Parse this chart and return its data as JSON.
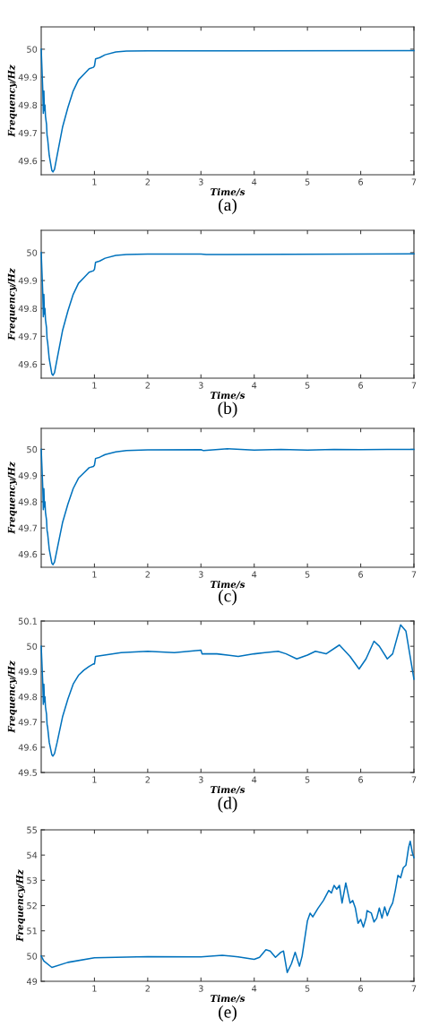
{
  "chart_data": [
    {
      "type": "line",
      "xlabel": "Time/s",
      "ylabel": "Frequency/Hz",
      "annotations": [
        "(a)"
      ],
      "xlim": [
        0,
        7
      ],
      "xticks": [
        1,
        2,
        3,
        4,
        5,
        6,
        7
      ],
      "ylim": [
        49.55,
        50.08
      ],
      "yticks": [
        49.6,
        49.7,
        49.8,
        49.9,
        50
      ],
      "grid": false,
      "legend": false,
      "series": [
        {
          "color": "#0072bd",
          "x": [
            0,
            0.01,
            0.03,
            0.04,
            0.05,
            0.06,
            0.07,
            0.08,
            0.1,
            0.11,
            0.12,
            0.15,
            0.2,
            0.22,
            0.25,
            0.3,
            0.4,
            0.5,
            0.6,
            0.7,
            0.8,
            0.9,
            0.98,
            1.0,
            1.02,
            1.1,
            1.2,
            1.4,
            1.6,
            2,
            3,
            7
          ],
          "values": [
            50.0,
            49.95,
            49.85,
            49.77,
            49.85,
            49.78,
            49.8,
            49.76,
            49.73,
            49.69,
            49.68,
            49.62,
            49.565,
            49.56,
            49.57,
            49.62,
            49.72,
            49.79,
            49.85,
            49.89,
            49.91,
            49.93,
            49.935,
            49.94,
            49.965,
            49.97,
            49.98,
            49.99,
            49.993,
            49.994,
            49.994,
            49.995
          ]
        }
      ]
    },
    {
      "type": "line",
      "xlabel": "Time/s",
      "ylabel": "Frequency/Hz",
      "annotations": [
        "(b)"
      ],
      "xlim": [
        0,
        7
      ],
      "xticks": [
        1,
        2,
        3,
        4,
        5,
        6,
        7
      ],
      "ylim": [
        49.55,
        50.08
      ],
      "yticks": [
        49.6,
        49.7,
        49.8,
        49.9,
        50
      ],
      "grid": false,
      "legend": false,
      "series": [
        {
          "color": "#0072bd",
          "x": [
            0,
            0.01,
            0.03,
            0.04,
            0.05,
            0.06,
            0.07,
            0.08,
            0.1,
            0.11,
            0.12,
            0.15,
            0.2,
            0.22,
            0.25,
            0.3,
            0.4,
            0.5,
            0.6,
            0.7,
            0.8,
            0.9,
            0.98,
            1.0,
            1.02,
            1.1,
            1.2,
            1.4,
            1.6,
            2,
            3,
            3.1,
            7
          ],
          "values": [
            50.0,
            49.95,
            49.85,
            49.77,
            49.85,
            49.78,
            49.8,
            49.76,
            49.73,
            49.69,
            49.68,
            49.62,
            49.565,
            49.56,
            49.57,
            49.62,
            49.72,
            49.79,
            49.85,
            49.89,
            49.91,
            49.93,
            49.935,
            49.94,
            49.965,
            49.97,
            49.98,
            49.99,
            49.993,
            49.995,
            49.995,
            49.993,
            49.996
          ]
        }
      ]
    },
    {
      "type": "line",
      "xlabel": "Time/s",
      "ylabel": "Frequency/Hz",
      "annotations": [
        "(c)"
      ],
      "xlim": [
        0,
        7
      ],
      "xticks": [
        1,
        2,
        3,
        4,
        5,
        6,
        7
      ],
      "ylim": [
        49.55,
        50.08
      ],
      "yticks": [
        49.6,
        49.7,
        49.8,
        49.9,
        50
      ],
      "grid": false,
      "legend": false,
      "series": [
        {
          "color": "#0072bd",
          "x": [
            0,
            0.01,
            0.03,
            0.04,
            0.05,
            0.06,
            0.07,
            0.08,
            0.1,
            0.11,
            0.12,
            0.15,
            0.2,
            0.22,
            0.25,
            0.3,
            0.4,
            0.5,
            0.6,
            0.7,
            0.8,
            0.9,
            0.98,
            1.0,
            1.02,
            1.1,
            1.2,
            1.4,
            1.6,
            2,
            3,
            3.05,
            3.5,
            4,
            4.5,
            5,
            5.5,
            6,
            6.5,
            7
          ],
          "values": [
            50.0,
            49.95,
            49.85,
            49.77,
            49.85,
            49.78,
            49.8,
            49.76,
            49.73,
            49.69,
            49.68,
            49.62,
            49.565,
            49.56,
            49.57,
            49.62,
            49.72,
            49.79,
            49.85,
            49.89,
            49.91,
            49.93,
            49.935,
            49.94,
            49.965,
            49.97,
            49.98,
            49.99,
            49.995,
            49.998,
            49.999,
            49.995,
            50.002,
            49.997,
            50.0,
            49.997,
            50.0,
            49.999,
            50.0,
            50.0
          ]
        }
      ]
    },
    {
      "type": "line",
      "xlabel": "Time/s",
      "ylabel": "Frequency/Hz",
      "annotations": [
        "(d)"
      ],
      "xlim": [
        0,
        7
      ],
      "xticks": [
        1,
        2,
        3,
        4,
        5,
        6,
        7
      ],
      "ylim": [
        49.5,
        50.1
      ],
      "yticks": [
        49.5,
        49.6,
        49.7,
        49.8,
        49.9,
        50,
        50.1
      ],
      "grid": false,
      "legend": false,
      "series": [
        {
          "color": "#0072bd",
          "x": [
            0,
            0.01,
            0.03,
            0.04,
            0.05,
            0.06,
            0.07,
            0.08,
            0.1,
            0.11,
            0.12,
            0.15,
            0.2,
            0.22,
            0.25,
            0.3,
            0.4,
            0.5,
            0.6,
            0.7,
            0.8,
            0.9,
            0.98,
            1.0,
            1.02,
            1.5,
            2,
            2.5,
            3,
            3.02,
            3.3,
            3.7,
            4.0,
            4.2,
            4.45,
            4.6,
            4.8,
            5.0,
            5.15,
            5.35,
            5.6,
            5.8,
            5.97,
            6.1,
            6.25,
            6.35,
            6.5,
            6.6,
            6.75,
            6.85,
            7.0
          ],
          "values": [
            50.0,
            49.95,
            49.85,
            49.77,
            49.85,
            49.78,
            49.8,
            49.76,
            49.73,
            49.69,
            49.68,
            49.62,
            49.57,
            49.565,
            49.575,
            49.62,
            49.72,
            49.79,
            49.85,
            49.885,
            49.905,
            49.92,
            49.93,
            49.93,
            49.96,
            49.975,
            49.98,
            49.975,
            49.985,
            49.97,
            49.97,
            49.96,
            49.97,
            49.975,
            49.98,
            49.97,
            49.95,
            49.965,
            49.98,
            49.97,
            50.005,
            49.96,
            49.91,
            49.95,
            50.02,
            50.0,
            49.95,
            49.97,
            50.085,
            50.06,
            49.87
          ]
        }
      ]
    },
    {
      "type": "line",
      "xlabel": "Time/s",
      "ylabel": "Frequency/Hz",
      "annotations": [
        "(e)"
      ],
      "xlim": [
        0,
        7
      ],
      "xticks": [
        1,
        2,
        3,
        4,
        5,
        6,
        7
      ],
      "ylim": [
        49,
        55
      ],
      "yticks": [
        49,
        50,
        51,
        52,
        53,
        54,
        55
      ],
      "grid": false,
      "legend": false,
      "series": [
        {
          "color": "#0072bd",
          "x": [
            0,
            0.05,
            0.2,
            0.5,
            1,
            2,
            3,
            3.4,
            3.7,
            4,
            4.1,
            4.22,
            4.3,
            4.4,
            4.5,
            4.55,
            4.62,
            4.7,
            4.77,
            4.85,
            4.9,
            5.0,
            5.05,
            5.1,
            5.2,
            5.3,
            5.4,
            5.45,
            5.5,
            5.55,
            5.6,
            5.65,
            5.72,
            5.8,
            5.85,
            5.9,
            5.95,
            6.0,
            6.05,
            6.1,
            6.12,
            6.2,
            6.25,
            6.3,
            6.35,
            6.4,
            6.45,
            6.5,
            6.55,
            6.6,
            6.65,
            6.7,
            6.75,
            6.8,
            6.85,
            6.9,
            6.93,
            6.97,
            7.0
          ],
          "values": [
            50,
            49.8,
            49.55,
            49.75,
            49.93,
            49.98,
            49.97,
            50.03,
            49.97,
            49.87,
            49.95,
            50.25,
            50.2,
            49.95,
            50.15,
            50.2,
            49.35,
            49.7,
            50.15,
            49.6,
            50.0,
            51.4,
            51.7,
            51.55,
            51.9,
            52.2,
            52.6,
            52.5,
            52.8,
            52.65,
            52.8,
            52.1,
            52.9,
            52.1,
            52.2,
            51.9,
            51.3,
            51.45,
            51.15,
            51.5,
            51.8,
            51.7,
            51.35,
            51.5,
            51.9,
            51.5,
            51.95,
            51.6,
            51.9,
            52.1,
            52.6,
            53.2,
            53.1,
            53.5,
            53.6,
            54.3,
            54.55,
            54.1,
            53.9
          ]
        }
      ]
    }
  ]
}
